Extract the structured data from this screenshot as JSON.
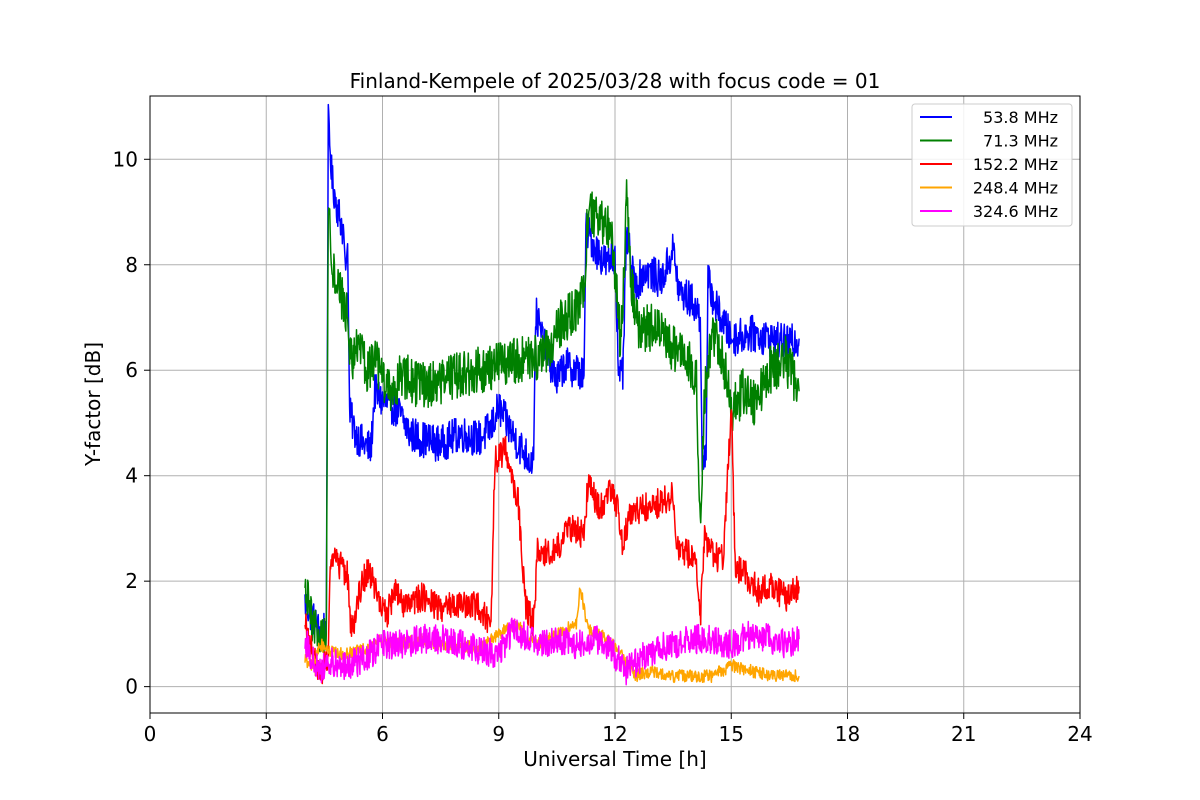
{
  "chart_data": {
    "type": "line",
    "title": "Finland-Kempele of 2025/03/28 with focus code = 01",
    "xlabel": "Universal Time [h]",
    "ylabel": "Y-factor [dB]",
    "xlim": [
      0,
      24
    ],
    "ylim": [
      -0.5,
      11.2
    ],
    "xticks": [
      0,
      3,
      6,
      9,
      12,
      15,
      18,
      21,
      24
    ],
    "yticks": [
      0,
      2,
      4,
      6,
      8,
      10
    ],
    "grid": true,
    "legend_position": "top-right",
    "series": [
      {
        "name": "53.8 MHz",
        "color": "#0000ff",
        "points": [
          [
            4.0,
            1.6
          ],
          [
            4.2,
            1.3
          ],
          [
            4.4,
            1.0
          ],
          [
            4.55,
            1.2
          ],
          [
            4.6,
            10.7
          ],
          [
            4.7,
            9.6
          ],
          [
            4.8,
            9.2
          ],
          [
            5.0,
            8.6
          ],
          [
            5.05,
            7.9
          ],
          [
            5.1,
            8.4
          ],
          [
            5.15,
            5.2
          ],
          [
            5.3,
            4.8
          ],
          [
            5.5,
            4.6
          ],
          [
            5.7,
            4.5
          ],
          [
            5.8,
            5.6
          ],
          [
            6.0,
            5.4
          ],
          [
            6.3,
            5.3
          ],
          [
            6.5,
            5.1
          ],
          [
            6.7,
            4.8
          ],
          [
            7.0,
            4.7
          ],
          [
            7.5,
            4.6
          ],
          [
            8.0,
            4.8
          ],
          [
            8.5,
            4.7
          ],
          [
            8.8,
            4.9
          ],
          [
            9.0,
            5.3
          ],
          [
            9.2,
            5.0
          ],
          [
            9.5,
            4.6
          ],
          [
            9.8,
            4.3
          ],
          [
            9.9,
            4.3
          ],
          [
            9.95,
            7.1
          ],
          [
            10.2,
            6.4
          ],
          [
            10.5,
            5.8
          ],
          [
            10.7,
            6.1
          ],
          [
            11.0,
            6.0
          ],
          [
            11.2,
            5.9
          ],
          [
            11.25,
            8.7
          ],
          [
            11.5,
            8.3
          ],
          [
            11.8,
            8.0
          ],
          [
            12.0,
            8.2
          ],
          [
            12.1,
            5.8
          ],
          [
            12.2,
            5.9
          ],
          [
            12.3,
            8.6
          ],
          [
            12.5,
            7.6
          ],
          [
            12.8,
            7.9
          ],
          [
            13.2,
            7.7
          ],
          [
            13.5,
            8.3
          ],
          [
            13.65,
            7.5
          ],
          [
            14.0,
            7.3
          ],
          [
            14.2,
            7.0
          ],
          [
            14.25,
            4.4
          ],
          [
            14.35,
            4.3
          ],
          [
            14.4,
            7.7
          ],
          [
            14.6,
            7.2
          ],
          [
            15.0,
            6.6
          ],
          [
            15.5,
            6.7
          ],
          [
            16.0,
            6.6
          ],
          [
            16.5,
            6.5
          ],
          [
            16.75,
            6.6
          ]
        ]
      },
      {
        "name": "71.3 MHz",
        "color": "#008000",
        "points": [
          [
            4.0,
            1.8
          ],
          [
            4.2,
            1.2
          ],
          [
            4.4,
            0.9
          ],
          [
            4.55,
            1.0
          ],
          [
            4.6,
            9.3
          ],
          [
            4.7,
            8.0
          ],
          [
            4.9,
            7.5
          ],
          [
            5.1,
            7.0
          ],
          [
            5.15,
            6.2
          ],
          [
            5.4,
            6.4
          ],
          [
            5.6,
            6.0
          ],
          [
            5.8,
            6.2
          ],
          [
            6.0,
            5.8
          ],
          [
            6.2,
            5.6
          ],
          [
            6.5,
            5.9
          ],
          [
            7.0,
            5.7
          ],
          [
            7.5,
            5.8
          ],
          [
            8.0,
            5.9
          ],
          [
            8.5,
            6.0
          ],
          [
            9.0,
            6.1
          ],
          [
            9.5,
            6.2
          ],
          [
            9.9,
            6.3
          ],
          [
            10.0,
            6.1
          ],
          [
            10.3,
            6.4
          ],
          [
            10.6,
            6.9
          ],
          [
            11.0,
            7.1
          ],
          [
            11.2,
            7.5
          ],
          [
            11.3,
            9.0
          ],
          [
            11.6,
            8.8
          ],
          [
            11.9,
            8.7
          ],
          [
            12.05,
            7.5
          ],
          [
            12.15,
            6.4
          ],
          [
            12.3,
            9.2
          ],
          [
            12.4,
            7.8
          ],
          [
            12.6,
            6.8
          ],
          [
            13.0,
            6.8
          ],
          [
            13.5,
            6.4
          ],
          [
            13.9,
            6.2
          ],
          [
            14.1,
            5.8
          ],
          [
            14.2,
            3.0
          ],
          [
            14.3,
            5.5
          ],
          [
            14.5,
            6.8
          ],
          [
            14.8,
            6.2
          ],
          [
            15.0,
            5.2
          ],
          [
            15.3,
            5.6
          ],
          [
            15.6,
            5.4
          ],
          [
            16.0,
            6.0
          ],
          [
            16.4,
            6.2
          ],
          [
            16.75,
            5.6
          ]
        ]
      },
      {
        "name": "152.2 MHz",
        "color": "#ff0000",
        "points": [
          [
            4.0,
            1.2
          ],
          [
            4.2,
            0.6
          ],
          [
            4.4,
            0.2
          ],
          [
            4.6,
            0.6
          ],
          [
            4.65,
            2.4
          ],
          [
            4.9,
            2.3
          ],
          [
            5.1,
            2.1
          ],
          [
            5.2,
            1.0
          ],
          [
            5.4,
            1.8
          ],
          [
            5.6,
            2.2
          ],
          [
            5.8,
            1.9
          ],
          [
            6.1,
            1.3
          ],
          [
            6.3,
            1.8
          ],
          [
            6.6,
            1.5
          ],
          [
            7.0,
            1.7
          ],
          [
            7.5,
            1.5
          ],
          [
            8.0,
            1.6
          ],
          [
            8.5,
            1.5
          ],
          [
            8.8,
            1.2
          ],
          [
            8.9,
            4.3
          ],
          [
            9.2,
            4.5
          ],
          [
            9.5,
            3.5
          ],
          [
            9.7,
            1.5
          ],
          [
            9.9,
            1.2
          ],
          [
            10.0,
            2.6
          ],
          [
            10.4,
            2.5
          ],
          [
            10.8,
            3.0
          ],
          [
            11.2,
            2.9
          ],
          [
            11.3,
            3.8
          ],
          [
            11.6,
            3.4
          ],
          [
            11.9,
            3.7
          ],
          [
            12.1,
            3.3
          ],
          [
            12.2,
            2.7
          ],
          [
            12.4,
            3.3
          ],
          [
            12.8,
            3.4
          ],
          [
            13.2,
            3.5
          ],
          [
            13.5,
            3.6
          ],
          [
            13.6,
            2.7
          ],
          [
            13.9,
            2.5
          ],
          [
            14.1,
            2.3
          ],
          [
            14.2,
            1.2
          ],
          [
            14.3,
            2.8
          ],
          [
            14.5,
            2.5
          ],
          [
            14.8,
            2.4
          ],
          [
            15.0,
            5.3
          ],
          [
            15.1,
            2.3
          ],
          [
            15.4,
            2.1
          ],
          [
            15.7,
            1.8
          ],
          [
            16.0,
            1.9
          ],
          [
            16.4,
            1.7
          ],
          [
            16.75,
            1.9
          ]
        ]
      },
      {
        "name": "248.4 MHz",
        "color": "#ffa500",
        "points": [
          [
            4.0,
            0.5
          ],
          [
            4.2,
            0.4
          ],
          [
            4.4,
            0.8
          ],
          [
            4.6,
            0.7
          ],
          [
            5.0,
            0.6
          ],
          [
            5.5,
            0.7
          ],
          [
            6.0,
            0.9
          ],
          [
            6.5,
            0.8
          ],
          [
            7.0,
            0.9
          ],
          [
            7.5,
            0.8
          ],
          [
            8.0,
            0.8
          ],
          [
            8.5,
            0.7
          ],
          [
            9.0,
            1.0
          ],
          [
            9.5,
            1.2
          ],
          [
            9.7,
            0.9
          ],
          [
            10.0,
            0.8
          ],
          [
            10.5,
            1.0
          ],
          [
            11.0,
            1.2
          ],
          [
            11.1,
            1.9
          ],
          [
            11.3,
            1.1
          ],
          [
            11.8,
            0.9
          ],
          [
            12.2,
            0.6
          ],
          [
            12.5,
            0.2
          ],
          [
            13.0,
            0.3
          ],
          [
            13.5,
            0.2
          ],
          [
            14.0,
            0.2
          ],
          [
            14.5,
            0.2
          ],
          [
            15.0,
            0.4
          ],
          [
            15.5,
            0.3
          ],
          [
            16.0,
            0.2
          ],
          [
            16.5,
            0.2
          ],
          [
            16.75,
            0.2
          ]
        ]
      },
      {
        "name": "324.6 MHz",
        "color": "#ff00ff",
        "points": [
          [
            4.0,
            0.9
          ],
          [
            4.2,
            0.5
          ],
          [
            4.4,
            0.3
          ],
          [
            4.6,
            0.5
          ],
          [
            5.0,
            0.4
          ],
          [
            5.5,
            0.5
          ],
          [
            6.0,
            0.8
          ],
          [
            6.5,
            0.8
          ],
          [
            7.0,
            0.9
          ],
          [
            7.5,
            0.9
          ],
          [
            8.0,
            0.8
          ],
          [
            8.5,
            0.7
          ],
          [
            9.0,
            0.6
          ],
          [
            9.4,
            1.1
          ],
          [
            9.6,
            1.0
          ],
          [
            10.0,
            0.8
          ],
          [
            10.5,
            0.9
          ],
          [
            11.0,
            0.8
          ],
          [
            11.5,
            0.9
          ],
          [
            12.0,
            0.6
          ],
          [
            12.3,
            0.3
          ],
          [
            12.6,
            0.5
          ],
          [
            13.0,
            0.7
          ],
          [
            13.5,
            0.8
          ],
          [
            14.0,
            0.9
          ],
          [
            14.5,
            0.9
          ],
          [
            15.0,
            0.8
          ],
          [
            15.5,
            1.0
          ],
          [
            16.0,
            0.9
          ],
          [
            16.5,
            0.8
          ],
          [
            16.75,
            0.9
          ]
        ]
      }
    ]
  }
}
